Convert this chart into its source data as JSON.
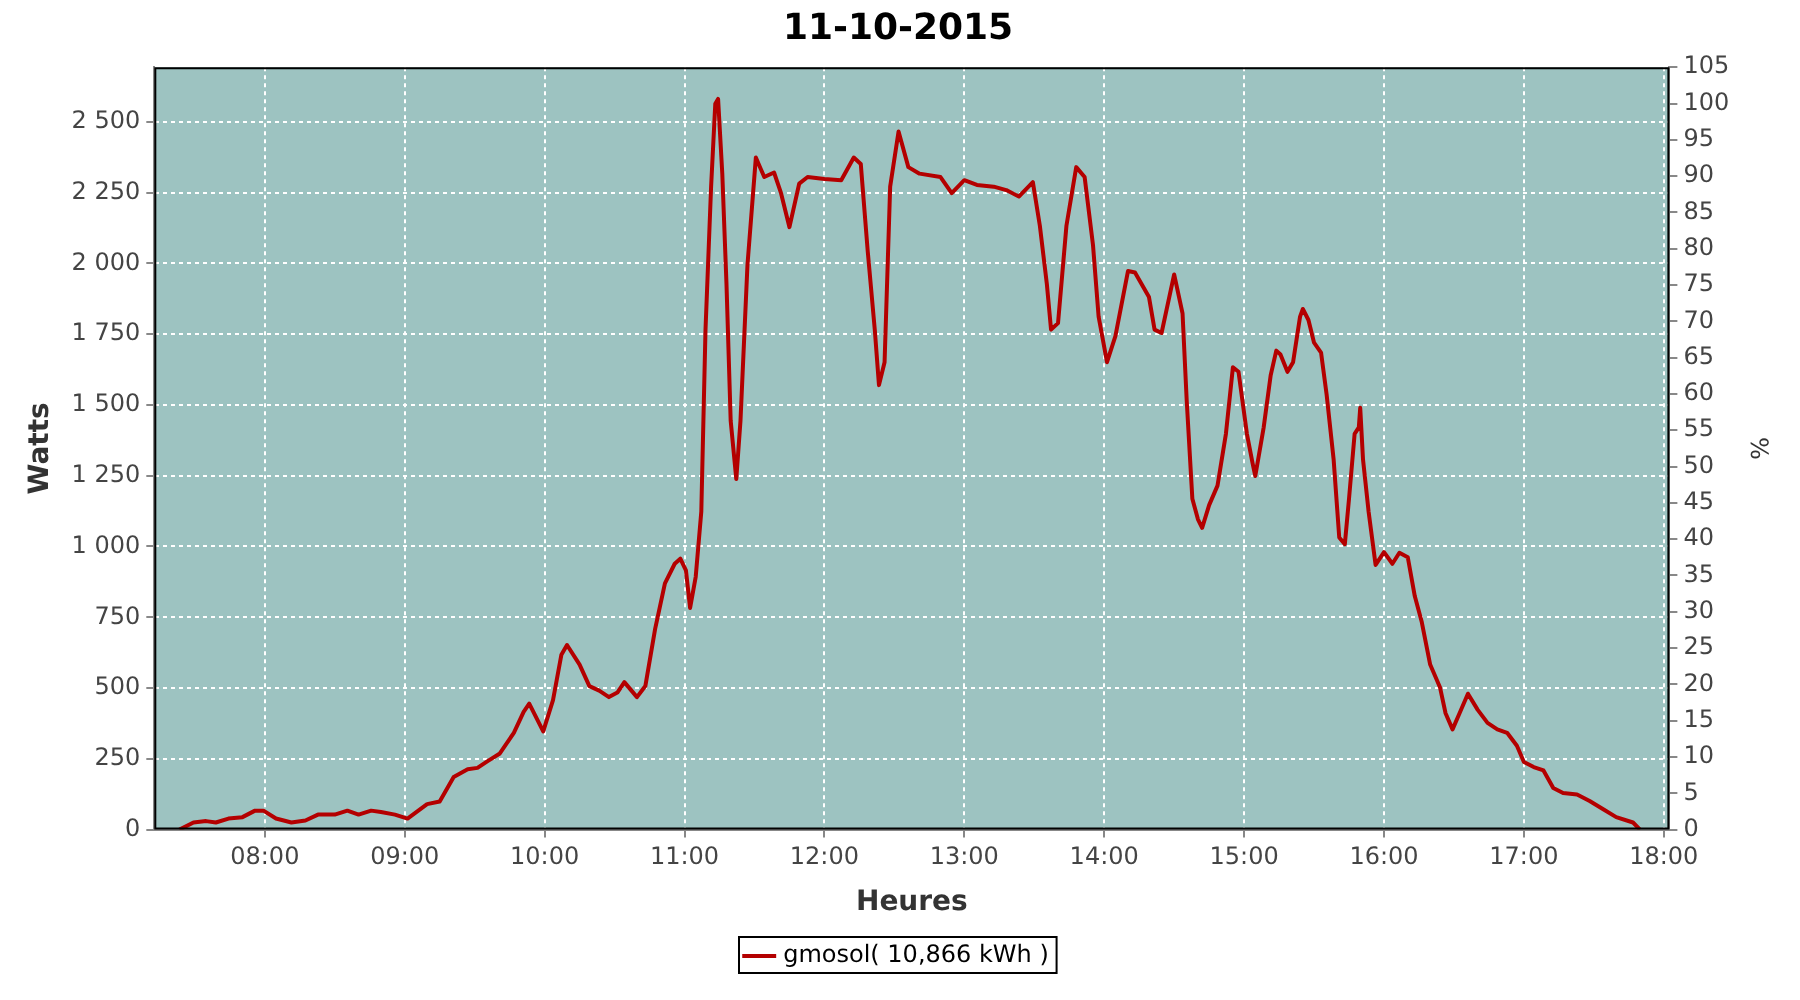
{
  "chart_data": {
    "type": "line",
    "title": "11-10-2015",
    "xlabel": "Heures",
    "ylabel": "Watts",
    "y2label": "%",
    "x": [
      7.39,
      7.49,
      7.58,
      7.65,
      7.74,
      7.84,
      7.93,
      7.99,
      8.08,
      8.19,
      8.29,
      8.38,
      8.5,
      8.59,
      8.67,
      8.76,
      8.83,
      8.93,
      9.02,
      9.16,
      9.25,
      9.35,
      9.45,
      9.52,
      9.59,
      9.68,
      9.78,
      9.85,
      9.89,
      9.99,
      10.06,
      10.12,
      10.16,
      10.25,
      10.32,
      10.39,
      10.46,
      10.52,
      10.57,
      10.66,
      10.72,
      10.79,
      10.86,
      10.93,
      10.97,
      11.01,
      11.04,
      11.08,
      11.12,
      11.15,
      11.19,
      11.22,
      11.24,
      11.27,
      11.3,
      11.33,
      11.37,
      11.4,
      11.45,
      11.51,
      11.57,
      11.64,
      11.69,
      11.75,
      11.82,
      11.88,
      12,
      12.12,
      12.21,
      12.26,
      12.31,
      12.36,
      12.39,
      12.43,
      12.47,
      12.53,
      12.6,
      12.68,
      12.83,
      12.91,
      13,
      13.09,
      13.21,
      13.3,
      13.39,
      13.49,
      13.54,
      13.59,
      13.62,
      13.67,
      13.73,
      13.8,
      13.86,
      13.92,
      13.96,
      14.02,
      14.08,
      14.17,
      14.22,
      14.32,
      14.36,
      14.41,
      14.5,
      14.56,
      14.59,
      14.63,
      14.67,
      14.7,
      14.75,
      14.81,
      14.87,
      14.92,
      14.96,
      15.02,
      15.06,
      15.08,
      15.14,
      15.19,
      15.23,
      15.26,
      15.31,
      15.35,
      15.4,
      15.42,
      15.46,
      15.5,
      15.55,
      15.59,
      15.64,
      15.68,
      15.72,
      15.75,
      15.79,
      15.82,
      15.83,
      15.85,
      15.89,
      15.94,
      16,
      16.06,
      16.11,
      16.17,
      16.22,
      16.27,
      16.33,
      16.4,
      16.44,
      16.49,
      16.54,
      16.6,
      16.67,
      16.74,
      16.81,
      16.88,
      16.95,
      17,
      17.07,
      17.14,
      17.21,
      17.28,
      17.38,
      17.47,
      17.57,
      17.66,
      17.78,
      17.83
    ],
    "series": [
      {
        "name": "gmosol( 10,866 kWh )",
        "color": "#b40000",
        "values": [
          0,
          25,
          30,
          25,
          39,
          44,
          67,
          67,
          39,
          25,
          32,
          53,
          53,
          67,
          53,
          67,
          62,
          53,
          39,
          90,
          99,
          186,
          213,
          218,
          241,
          269,
          342,
          416,
          445,
          347,
          457,
          618,
          652,
          583,
          507,
          491,
          468,
          484,
          521,
          468,
          507,
          709,
          870,
          939,
          957,
          916,
          783,
          893,
          1123,
          1766,
          2270,
          2564,
          2581,
          2317,
          1927,
          1444,
          1238,
          1444,
          1995,
          2374,
          2305,
          2321,
          2248,
          2128,
          2282,
          2305,
          2298,
          2294,
          2374,
          2351,
          2041,
          1766,
          1570,
          1651,
          2271,
          2466,
          2340,
          2317,
          2305,
          2248,
          2294,
          2277,
          2271,
          2259,
          2236,
          2287,
          2133,
          1927,
          1766,
          1789,
          2133,
          2340,
          2305,
          2064,
          1812,
          1651,
          1743,
          1973,
          1968,
          1881,
          1766,
          1754,
          1961,
          1823,
          1513,
          1169,
          1096,
          1066,
          1146,
          1215,
          1398,
          1633,
          1617,
          1398,
          1295,
          1249,
          1421,
          1605,
          1692,
          1678,
          1617,
          1651,
          1812,
          1839,
          1800,
          1720,
          1685,
          1536,
          1307,
          1032,
          1008,
          1169,
          1398,
          1421,
          1490,
          1307,
          1123,
          935,
          980,
          939,
          978,
          962,
          825,
          733,
          583,
          503,
          411,
          354,
          411,
          480,
          423,
          377,
          354,
          342,
          296,
          239,
          221,
          209,
          147,
          129,
          124,
          101,
          71,
          44,
          25,
          0
        ]
      }
    ],
    "xlim": [
      7.21,
      18.04
    ],
    "xticks": [
      {
        "value": 8,
        "label": "08:00"
      },
      {
        "value": 9,
        "label": "09:00"
      },
      {
        "value": 10,
        "label": "10:00"
      },
      {
        "value": 11,
        "label": "11:00"
      },
      {
        "value": 12,
        "label": "12:00"
      },
      {
        "value": 13,
        "label": "13:00"
      },
      {
        "value": 14,
        "label": "14:00"
      },
      {
        "value": 15,
        "label": "15:00"
      },
      {
        "value": 16,
        "label": "16:00"
      },
      {
        "value": 17,
        "label": "17:00"
      },
      {
        "value": 18,
        "label": "18:00"
      }
    ],
    "ylim": [
      0,
      2693
    ],
    "yticks": [
      0,
      250,
      500,
      750,
      {
        "value": 1000,
        "label": "1 000"
      },
      {
        "value": 1250,
        "label": "1 250"
      },
      {
        "value": 1500,
        "label": "1 500"
      },
      {
        "value": 1750,
        "label": "1 750"
      },
      {
        "value": 2000,
        "label": "2 000"
      },
      {
        "value": 2250,
        "label": "2 250"
      },
      {
        "value": 2500,
        "label": "2 500"
      }
    ],
    "y2lim": [
      0,
      105
    ],
    "y2ticks": [
      0,
      5,
      10,
      15,
      20,
      25,
      30,
      35,
      40,
      45,
      50,
      55,
      60,
      65,
      70,
      75,
      80,
      85,
      90,
      95,
      100,
      105
    ],
    "grid": true,
    "legend": "bottom",
    "marker": "none",
    "line_style": "solid"
  }
}
